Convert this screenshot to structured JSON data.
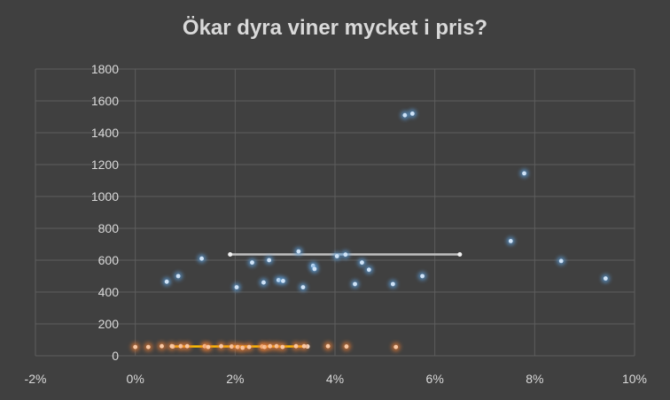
{
  "chart_data": {
    "type": "scatter",
    "title": "Ökar dyra viner mycket i pris?",
    "xlim": [
      -0.02,
      0.1
    ],
    "ylim": [
      0,
      1800
    ],
    "x_ticks": [
      -0.02,
      0,
      0.02,
      0.04,
      0.06,
      0.08,
      0.1
    ],
    "x_tick_labels": [
      "-2%",
      "0%",
      "2%",
      "4%",
      "6%",
      "8%",
      "10%"
    ],
    "y_ticks": [
      0,
      200,
      400,
      600,
      800,
      1000,
      1200,
      1400,
      1600,
      1800
    ],
    "y_tick_labels": [
      "0",
      "200",
      "400",
      "600",
      "800",
      "1000",
      "1200",
      "1400",
      "1600",
      "1800"
    ],
    "grid": true,
    "series": [
      {
        "color": "#5b9bd5",
        "points": [
          [
            0.0063,
            465
          ],
          [
            0.0086,
            500
          ],
          [
            0.0133,
            610
          ],
          [
            0.0203,
            430
          ],
          [
            0.0234,
            585
          ],
          [
            0.0257,
            460
          ],
          [
            0.0268,
            600
          ],
          [
            0.0287,
            475
          ],
          [
            0.0296,
            470
          ],
          [
            0.0327,
            655
          ],
          [
            0.0336,
            430
          ],
          [
            0.0356,
            565
          ],
          [
            0.0359,
            545
          ],
          [
            0.0404,
            625
          ],
          [
            0.0421,
            635
          ],
          [
            0.044,
            450
          ],
          [
            0.0454,
            585
          ],
          [
            0.0468,
            540
          ],
          [
            0.0516,
            450
          ],
          [
            0.054,
            1510
          ],
          [
            0.0555,
            1520
          ],
          [
            0.0575,
            500
          ],
          [
            0.0752,
            720
          ],
          [
            0.0779,
            1145
          ],
          [
            0.0853,
            595
          ],
          [
            0.0942,
            485
          ]
        ]
      },
      {
        "color": "#ed7d31",
        "points": [
          [
            0.0,
            55
          ],
          [
            0.0026,
            55
          ],
          [
            0.0053,
            60
          ],
          [
            0.0073,
            60
          ],
          [
            0.0091,
            60
          ],
          [
            0.0104,
            60
          ],
          [
            0.0139,
            60
          ],
          [
            0.0146,
            55
          ],
          [
            0.0172,
            60
          ],
          [
            0.0193,
            58
          ],
          [
            0.0205,
            55
          ],
          [
            0.0215,
            50
          ],
          [
            0.0228,
            55
          ],
          [
            0.0254,
            58
          ],
          [
            0.0259,
            55
          ],
          [
            0.027,
            60
          ],
          [
            0.0283,
            60
          ],
          [
            0.0295,
            55
          ],
          [
            0.0322,
            60
          ],
          [
            0.0338,
            60
          ],
          [
            0.0386,
            60
          ],
          [
            0.0423,
            58
          ],
          [
            0.0522,
            55
          ]
        ]
      }
    ],
    "trend_lines": [
      {
        "color": "#bfbfbf",
        "x": [
          0.019,
          0.065
        ],
        "y": [
          636,
          636
        ]
      },
      {
        "color": "#ffc000",
        "x": [
          0.0075,
          0.0345
        ],
        "y": [
          58,
          58
        ]
      }
    ]
  }
}
